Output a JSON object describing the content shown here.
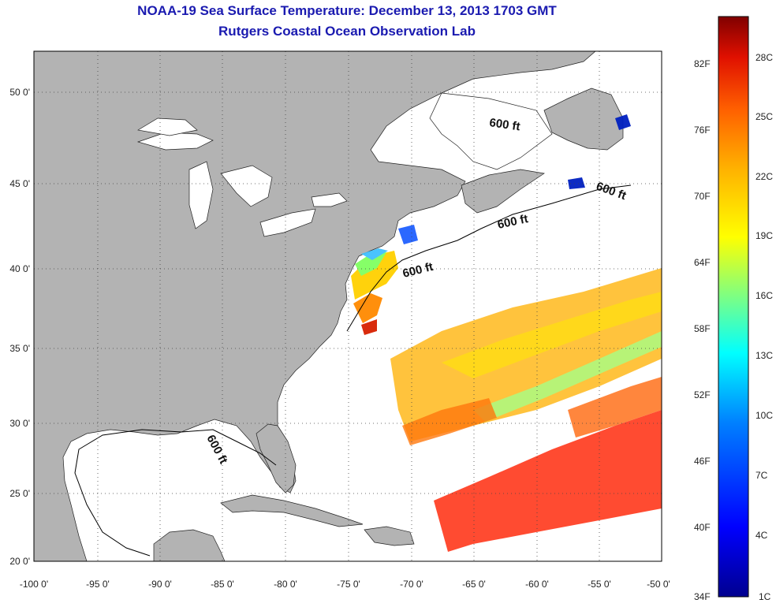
{
  "title": "NOAA-19 Sea Surface Temperature:  December 13, 2013 1703 GMT",
  "subtitle": "Rutgers Coastal Ocean Observation Lab",
  "map": {
    "lon_ticks": [
      "-100 0'",
      "-95 0'",
      "-90 0'",
      "-85 0'",
      "-80 0'",
      "-75 0'",
      "-70 0'",
      "-65 0'",
      "-60 0'",
      "-55 0'",
      "-50 0'"
    ],
    "lat_ticks": [
      "50 0'",
      "45 0'",
      "40 0'",
      "35 0'",
      "30 0'",
      "25 0'",
      "20 0'"
    ],
    "contour_labels": [
      "600 ft",
      "600 ft",
      "600 ft",
      "600 ft",
      "600 ft"
    ]
  },
  "colorbar": {
    "fahrenheit": [
      "82F",
      "76F",
      "70F",
      "64F",
      "58F",
      "52F",
      "46F",
      "40F",
      "34F"
    ],
    "celsius": [
      "28C",
      "25C",
      "22C",
      "19C",
      "16C",
      "13C",
      "10C",
      "7C",
      "4C",
      "1C"
    ],
    "colors": [
      "#800000",
      "#e01000",
      "#ff6000",
      "#ffb000",
      "#ffff00",
      "#80ff80",
      "#00ffff",
      "#0080ff",
      "#0000ff",
      "#00008f"
    ]
  },
  "colors": {
    "land": "#b3b3b3",
    "ocean": "#ffffff",
    "title": "#1a1ab0",
    "grid": "#444444"
  }
}
